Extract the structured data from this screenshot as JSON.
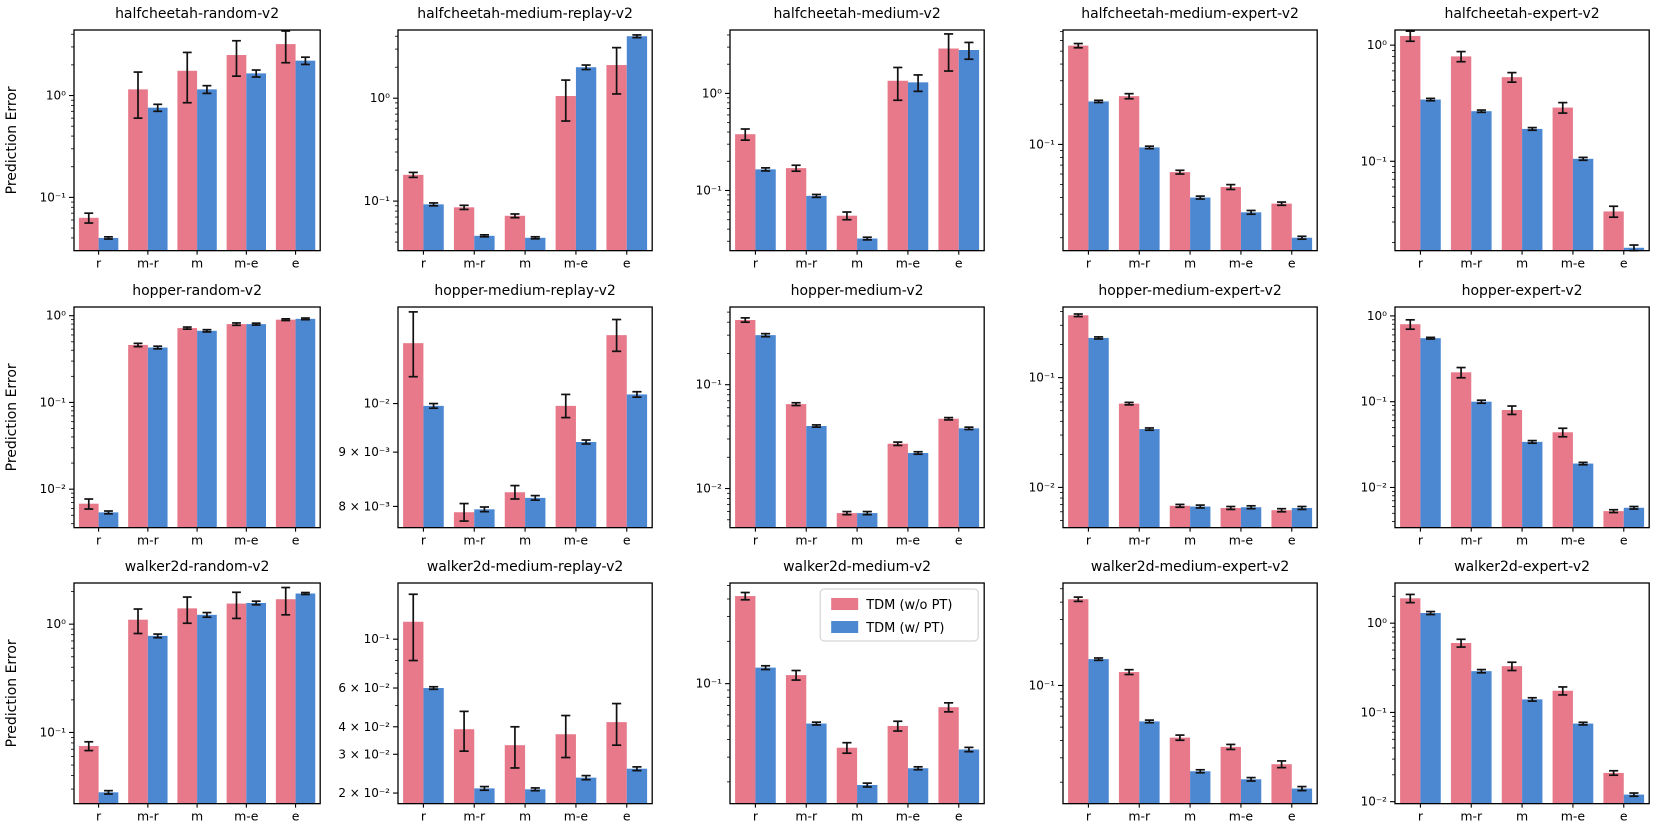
{
  "figure": {
    "ylabel": "Prediction Error",
    "categories": [
      "r",
      "m-r",
      "m",
      "m-e",
      "e"
    ],
    "colors": {
      "no_pt": "#e7798b",
      "pt": "#4c87d2",
      "error": "#111111"
    },
    "legend": {
      "chart_index": 12,
      "entries": [
        {
          "label": "TDM (w/o PT)",
          "color_key": "no_pt"
        },
        {
          "label": "TDM (w/ PT)",
          "color_key": "pt"
        }
      ]
    }
  },
  "chart_data": [
    {
      "type": "bar",
      "title": "halfcheetah-random-v2",
      "ylog": true,
      "ylim": [
        0.03,
        4.4
      ],
      "yticks": [
        {
          "v": 1,
          "label": "10⁰"
        },
        {
          "v": 0.1,
          "label": "10⁻¹"
        }
      ],
      "series": [
        {
          "name": "TDM (w/o PT)",
          "values": [
            0.063,
            1.15,
            1.75,
            2.5,
            3.2
          ],
          "errors": [
            0.007,
            0.55,
            0.9,
            0.95,
            1.1
          ]
        },
        {
          "name": "TDM (w/ PT)",
          "values": [
            0.04,
            0.76,
            1.15,
            1.65,
            2.2
          ],
          "errors": [
            0.001,
            0.06,
            0.1,
            0.13,
            0.18
          ]
        }
      ]
    },
    {
      "type": "bar",
      "title": "halfcheetah-medium-replay-v2",
      "ylog": true,
      "ylim": [
        0.033,
        4.6
      ],
      "yticks": [
        {
          "v": 1,
          "label": "10⁰"
        },
        {
          "v": 0.1,
          "label": "10⁻¹"
        }
      ],
      "series": [
        {
          "name": "TDM (w/o PT)",
          "values": [
            0.18,
            0.087,
            0.072,
            1.05,
            2.1
          ],
          "errors": [
            0.01,
            0.004,
            0.003,
            0.45,
            1.0
          ]
        },
        {
          "name": "TDM (w/ PT)",
          "values": [
            0.093,
            0.046,
            0.044,
            2.0,
            4.0
          ],
          "errors": [
            0.003,
            0.001,
            0.001,
            0.1,
            0.12
          ]
        }
      ]
    },
    {
      "type": "bar",
      "title": "halfcheetah-medium-v2",
      "ylog": true,
      "ylim": [
        0.024,
        4.5
      ],
      "yticks": [
        {
          "v": 1,
          "label": "10⁰"
        },
        {
          "v": 0.1,
          "label": "10⁻¹"
        }
      ],
      "series": [
        {
          "name": "TDM (w/o PT)",
          "values": [
            0.38,
            0.17,
            0.055,
            1.35,
            2.9
          ],
          "errors": [
            0.05,
            0.012,
            0.005,
            0.5,
            1.2
          ]
        },
        {
          "name": "TDM (w/ PT)",
          "values": [
            0.165,
            0.088,
            0.032,
            1.3,
            2.8
          ],
          "errors": [
            0.006,
            0.003,
            0.001,
            0.25,
            0.55
          ]
        }
      ]
    },
    {
      "type": "bar",
      "title": "halfcheetah-medium-expert-v2",
      "ylog": true,
      "ylim": [
        0.016,
        0.72
      ],
      "yticks": [
        {
          "v": 0.1,
          "label": "10⁻¹"
        }
      ],
      "series": [
        {
          "name": "TDM (w/o PT)",
          "values": [
            0.55,
            0.23,
            0.062,
            0.048,
            0.036
          ],
          "errors": [
            0.02,
            0.01,
            0.002,
            0.002,
            0.001
          ]
        },
        {
          "name": "TDM (w/ PT)",
          "values": [
            0.21,
            0.095,
            0.04,
            0.031,
            0.02
          ],
          "errors": [
            0.004,
            0.002,
            0.001,
            0.001,
            0.0005
          ]
        }
      ]
    },
    {
      "type": "bar",
      "title": "halfcheetah-expert-v2",
      "ylog": true,
      "ylim": [
        0.017,
        1.35
      ],
      "yticks": [
        {
          "v": 1,
          "label": "10⁰"
        },
        {
          "v": 0.1,
          "label": "10⁻¹"
        }
      ],
      "series": [
        {
          "name": "TDM (w/o PT)",
          "values": [
            1.2,
            0.8,
            0.53,
            0.29,
            0.037
          ],
          "errors": [
            0.12,
            0.08,
            0.05,
            0.03,
            0.004
          ]
        },
        {
          "name": "TDM (w/ PT)",
          "values": [
            0.34,
            0.27,
            0.19,
            0.105,
            0.018
          ],
          "errors": [
            0.008,
            0.006,
            0.005,
            0.003,
            0.001
          ]
        }
      ]
    },
    {
      "type": "bar",
      "title": "hopper-random-v2",
      "ylog": true,
      "ylim": [
        0.0036,
        1.26
      ],
      "yticks": [
        {
          "v": 1,
          "label": "10⁰"
        },
        {
          "v": 0.1,
          "label": "10⁻¹"
        },
        {
          "v": 0.01,
          "label": "10⁻²"
        }
      ],
      "series": [
        {
          "name": "TDM (w/o PT)",
          "values": [
            0.0068,
            0.46,
            0.72,
            0.8,
            0.9
          ],
          "errors": [
            0.0009,
            0.02,
            0.02,
            0.025,
            0.02
          ]
        },
        {
          "name": "TDM (w/ PT)",
          "values": [
            0.0054,
            0.43,
            0.67,
            0.8,
            0.92
          ],
          "errors": [
            0.0002,
            0.015,
            0.02,
            0.02,
            0.02
          ]
        }
      ]
    },
    {
      "type": "bar",
      "title": "hopper-medium-replay-v2",
      "ylog": true,
      "ylim": [
        0.00764,
        0.01233
      ],
      "yticks": [
        {
          "v": 0.01,
          "label": "10⁻²"
        },
        {
          "v": 0.009,
          "label": "9 × 10⁻³"
        },
        {
          "v": 0.008,
          "label": "8 × 10⁻³"
        }
      ],
      "series": [
        {
          "name": "TDM (w/o PT)",
          "values": [
            0.0114,
            0.0079,
            0.00825,
            0.00995,
            0.0116
          ],
          "errors": [
            0.0008,
            0.00015,
            0.00012,
            0.00025,
            0.0004
          ]
        },
        {
          "name": "TDM (w/ PT)",
          "values": [
            0.00995,
            0.00795,
            0.00815,
            0.0092,
            0.0102
          ],
          "errors": [
            5e-05,
            4e-05,
            4e-05,
            4e-05,
            6e-05
          ]
        }
      ]
    },
    {
      "type": "bar",
      "title": "hopper-medium-v2",
      "ylog": true,
      "ylim": [
        0.0042,
        0.56
      ],
      "yticks": [
        {
          "v": 0.1,
          "label": "10⁻¹"
        },
        {
          "v": 0.01,
          "label": "10⁻²"
        }
      ],
      "series": [
        {
          "name": "TDM (w/o PT)",
          "values": [
            0.42,
            0.065,
            0.0058,
            0.027,
            0.047
          ],
          "errors": [
            0.02,
            0.002,
            0.0002,
            0.001,
            0.0012
          ]
        },
        {
          "name": "TDM (w/ PT)",
          "values": [
            0.3,
            0.04,
            0.0058,
            0.022,
            0.038
          ],
          "errors": [
            0.01,
            0.001,
            0.0002,
            0.0006,
            0.001
          ]
        }
      ]
    },
    {
      "type": "bar",
      "title": "hopper-medium-expert-v2",
      "ylog": true,
      "ylim": [
        0.0043,
        0.44
      ],
      "yticks": [
        {
          "v": 0.1,
          "label": "10⁻¹"
        },
        {
          "v": 0.01,
          "label": "10⁻²"
        }
      ],
      "series": [
        {
          "name": "TDM (w/o PT)",
          "values": [
            0.37,
            0.058,
            0.0068,
            0.0065,
            0.0062
          ],
          "errors": [
            0.01,
            0.0015,
            0.0002,
            0.0002,
            0.0002
          ]
        },
        {
          "name": "TDM (w/ PT)",
          "values": [
            0.23,
            0.034,
            0.0067,
            0.0066,
            0.0065
          ],
          "errors": [
            0.005,
            0.0008,
            0.0002,
            0.0002,
            0.0002
          ]
        }
      ]
    },
    {
      "type": "bar",
      "title": "hopper-expert-v2",
      "ylog": true,
      "ylim": [
        0.0034,
        1.27
      ],
      "yticks": [
        {
          "v": 1,
          "label": "10⁰"
        },
        {
          "v": 0.1,
          "label": "10⁻¹"
        },
        {
          "v": 0.01,
          "label": "10⁻²"
        }
      ],
      "series": [
        {
          "name": "TDM (w/o PT)",
          "values": [
            0.8,
            0.22,
            0.08,
            0.044,
            0.0053
          ],
          "errors": [
            0.1,
            0.03,
            0.009,
            0.005,
            0.0002
          ]
        },
        {
          "name": "TDM (w/ PT)",
          "values": [
            0.55,
            0.1,
            0.034,
            0.019,
            0.0058
          ],
          "errors": [
            0.012,
            0.004,
            0.0012,
            0.0006,
            0.0002
          ]
        }
      ]
    },
    {
      "type": "bar",
      "title": "walker2d-random-v2",
      "ylog": true,
      "ylim": [
        0.022,
        2.4
      ],
      "yticks": [
        {
          "v": 1,
          "label": "10⁰"
        },
        {
          "v": 0.1,
          "label": "10⁻¹"
        }
      ],
      "series": [
        {
          "name": "TDM (w/o PT)",
          "values": [
            0.075,
            1.1,
            1.4,
            1.55,
            1.7
          ],
          "errors": [
            0.007,
            0.28,
            0.38,
            0.42,
            0.48
          ]
        },
        {
          "name": "TDM (w/ PT)",
          "values": [
            0.028,
            0.78,
            1.22,
            1.57,
            1.92
          ],
          "errors": [
            0.001,
            0.03,
            0.06,
            0.06,
            0.04
          ]
        }
      ]
    },
    {
      "type": "bar",
      "title": "walker2d-medium-replay-v2",
      "ylog": true,
      "ylim": [
        0.0179,
        0.18
      ],
      "yticks": [
        {
          "v": 0.1,
          "label": "10⁻¹"
        },
        {
          "v": 0.06,
          "label": "6 × 10⁻²"
        },
        {
          "v": 0.04,
          "label": "4 × 10⁻²"
        },
        {
          "v": 0.03,
          "label": "3 × 10⁻²"
        },
        {
          "v": 0.02,
          "label": "2 × 10⁻²"
        }
      ],
      "series": [
        {
          "name": "TDM (w/o PT)",
          "values": [
            0.12,
            0.039,
            0.033,
            0.037,
            0.042
          ],
          "errors": [
            0.04,
            0.008,
            0.007,
            0.008,
            0.009
          ]
        },
        {
          "name": "TDM (w/ PT)",
          "values": [
            0.06,
            0.021,
            0.0208,
            0.0235,
            0.0258
          ],
          "errors": [
            0.0008,
            0.0004,
            0.0003,
            0.0005,
            0.0005
          ]
        }
      ]
    },
    {
      "type": "bar",
      "title": "walker2d-medium-v2",
      "ylog": true,
      "ylim": [
        0.014,
        0.52
      ],
      "yticks": [
        {
          "v": 0.1,
          "label": "10⁻¹"
        }
      ],
      "series": [
        {
          "name": "TDM (w/o PT)",
          "values": [
            0.42,
            0.115,
            0.035,
            0.05,
            0.068
          ],
          "errors": [
            0.025,
            0.009,
            0.003,
            0.004,
            0.005
          ]
        },
        {
          "name": "TDM (w/ PT)",
          "values": [
            0.13,
            0.052,
            0.019,
            0.025,
            0.034
          ],
          "errors": [
            0.004,
            0.0012,
            0.0006,
            0.0006,
            0.0012
          ]
        }
      ]
    },
    {
      "type": "bar",
      "title": "walker2d-medium-expert-v2",
      "ylog": true,
      "ylim": [
        0.014,
        0.55
      ],
      "yticks": [
        {
          "v": 0.1,
          "label": "10⁻¹"
        }
      ],
      "series": [
        {
          "name": "TDM (w/o PT)",
          "values": [
            0.42,
            0.125,
            0.042,
            0.036,
            0.027
          ],
          "errors": [
            0.015,
            0.005,
            0.0018,
            0.0015,
            0.0015
          ]
        },
        {
          "name": "TDM (w/ PT)",
          "values": [
            0.155,
            0.055,
            0.024,
            0.021,
            0.018
          ],
          "errors": [
            0.003,
            0.0012,
            0.0006,
            0.0006,
            0.0006
          ]
        }
      ]
    },
    {
      "type": "bar",
      "title": "walker2d-expert-v2",
      "ylog": true,
      "ylim": [
        0.0095,
        2.82
      ],
      "yticks": [
        {
          "v": 1,
          "label": "10⁰"
        },
        {
          "v": 0.1,
          "label": "10⁻¹"
        },
        {
          "v": 0.01,
          "label": "10⁻²"
        }
      ],
      "series": [
        {
          "name": "TDM (w/o PT)",
          "values": [
            1.9,
            0.6,
            0.33,
            0.175,
            0.021
          ],
          "errors": [
            0.2,
            0.06,
            0.035,
            0.018,
            0.0012
          ]
        },
        {
          "name": "TDM (w/ PT)",
          "values": [
            1.3,
            0.29,
            0.14,
            0.075,
            0.012
          ],
          "errors": [
            0.05,
            0.012,
            0.006,
            0.0025,
            0.0005
          ]
        }
      ]
    }
  ]
}
